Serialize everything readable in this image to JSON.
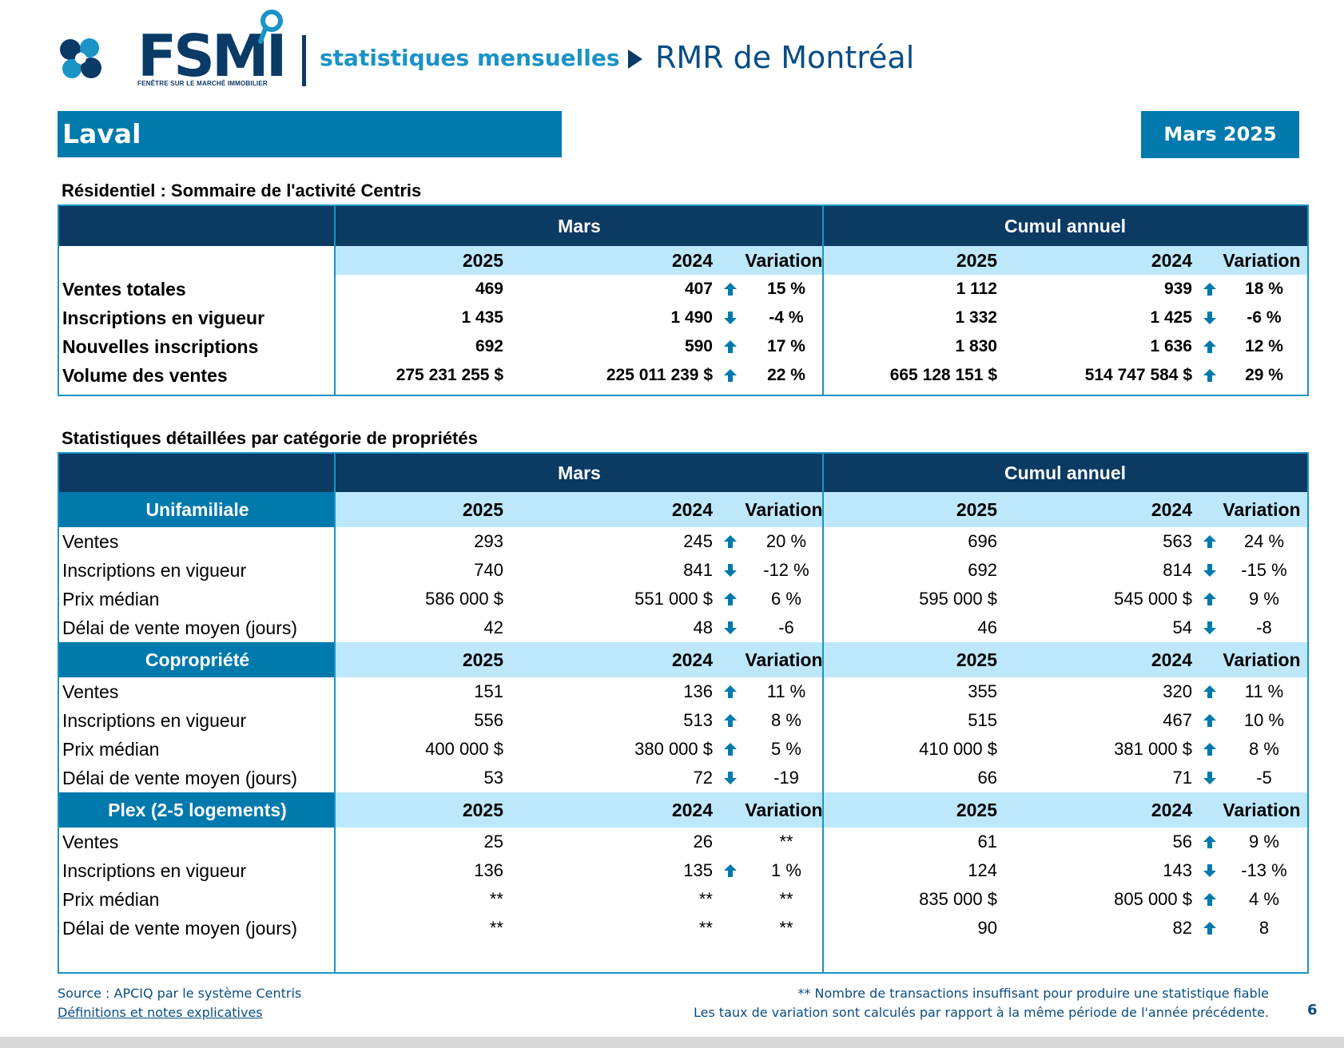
{
  "header": {
    "logo_text": "FSMI",
    "logo_subtext": "FENÊTRE SUR LE MARCHÉ IMMOBILIER",
    "subtitle": "statistiques mensuelles",
    "region": "RMR de Montréal"
  },
  "banner": {
    "city": "Laval",
    "period": "Mars 2025"
  },
  "colors": {
    "navy": "#0b3a63",
    "accent": "#0079ad",
    "light": "#bde8fb",
    "border": "#1a93c6"
  },
  "summary": {
    "title": "Résidentiel : Sommaire de l'activité Centris",
    "group_labels": [
      "Mars",
      "Cumul annuel"
    ],
    "col_labels": [
      "2025",
      "2024",
      "Variation",
      "2025",
      "2024",
      "Variation"
    ],
    "rows": [
      {
        "label": "Ventes totales",
        "m25": "469",
        "m24": "407",
        "m_dir": "up",
        "m_var": "15 %",
        "c25": "1 112",
        "c24": "939",
        "c_dir": "up",
        "c_var": "18 %"
      },
      {
        "label": "Inscriptions en vigueur",
        "m25": "1 435",
        "m24": "1 490",
        "m_dir": "down",
        "m_var": "-4 %",
        "c25": "1 332",
        "c24": "1 425",
        "c_dir": "down",
        "c_var": "-6 %"
      },
      {
        "label": "Nouvelles inscriptions",
        "m25": "692",
        "m24": "590",
        "m_dir": "up",
        "m_var": "17 %",
        "c25": "1 830",
        "c24": "1 636",
        "c_dir": "up",
        "c_var": "12 %"
      },
      {
        "label": "Volume des ventes",
        "m25": "275 231 255  $",
        "m24": "225 011 239  $",
        "m_dir": "up",
        "m_var": "22 %",
        "c25": "665 128 151  $",
        "c24": "514 747 584  $",
        "c_dir": "up",
        "c_var": "29 %"
      }
    ]
  },
  "detail": {
    "title": "Statistiques détaillées par catégorie de propriétés",
    "group_labels": [
      "Mars",
      "Cumul annuel"
    ],
    "col_labels": [
      "2025",
      "2024",
      "Variation",
      "2025",
      "2024",
      "Variation"
    ],
    "categories": [
      {
        "name": "Unifamiliale",
        "rows": [
          {
            "label": "Ventes",
            "m25": "293",
            "m24": "245",
            "m_dir": "up",
            "m_var": "20 %",
            "c25": "696",
            "c24": "563",
            "c_dir": "up",
            "c_var": "24 %"
          },
          {
            "label": "Inscriptions en vigueur",
            "m25": "740",
            "m24": "841",
            "m_dir": "down",
            "m_var": "-12 %",
            "c25": "692",
            "c24": "814",
            "c_dir": "down",
            "c_var": "-15 %"
          },
          {
            "label": "Prix médian",
            "m25": "586 000 $",
            "m24": "551 000 $",
            "m_dir": "up",
            "m_var": "6 %",
            "c25": "595 000 $",
            "c24": "545 000 $",
            "c_dir": "up",
            "c_var": "9 %"
          },
          {
            "label": "Délai de vente moyen (jours)",
            "m25": "42",
            "m24": "48",
            "m_dir": "down",
            "m_var": "-6",
            "c25": "46",
            "c24": "54",
            "c_dir": "down",
            "c_var": "-8"
          }
        ]
      },
      {
        "name": "Copropriété",
        "rows": [
          {
            "label": "Ventes",
            "m25": "151",
            "m24": "136",
            "m_dir": "up",
            "m_var": "11 %",
            "c25": "355",
            "c24": "320",
            "c_dir": "up",
            "c_var": "11 %"
          },
          {
            "label": "Inscriptions en vigueur",
            "m25": "556",
            "m24": "513",
            "m_dir": "up",
            "m_var": "8 %",
            "c25": "515",
            "c24": "467",
            "c_dir": "up",
            "c_var": "10 %"
          },
          {
            "label": "Prix médian",
            "m25": "400 000 $",
            "m24": "380 000 $",
            "m_dir": "up",
            "m_var": "5 %",
            "c25": "410 000 $",
            "c24": "381 000 $",
            "c_dir": "up",
            "c_var": "8 %"
          },
          {
            "label": "Délai de vente moyen (jours)",
            "m25": "53",
            "m24": "72",
            "m_dir": "down",
            "m_var": "-19",
            "c25": "66",
            "c24": "71",
            "c_dir": "down",
            "c_var": "-5"
          }
        ]
      },
      {
        "name": "Plex (2-5 logements)",
        "rows": [
          {
            "label": "Ventes",
            "m25": "25",
            "m24": "26",
            "m_dir": "",
            "m_var": "**",
            "c25": "61",
            "c24": "56",
            "c_dir": "up",
            "c_var": "9 %"
          },
          {
            "label": "Inscriptions en vigueur",
            "m25": "136",
            "m24": "135",
            "m_dir": "up",
            "m_var": "1 %",
            "c25": "124",
            "c24": "143",
            "c_dir": "down",
            "c_var": "-13 %"
          },
          {
            "label": "Prix médian",
            "m25": "**",
            "m24": "**",
            "m_dir": "",
            "m_var": "**",
            "c25": "835 000 $",
            "c24": "805 000 $",
            "c_dir": "up",
            "c_var": "4 %"
          },
          {
            "label": "Délai de vente moyen (jours)",
            "m25": "**",
            "m24": "**",
            "m_dir": "",
            "m_var": "**",
            "c25": "90",
            "c24": "82",
            "c_dir": "up",
            "c_var": "8"
          }
        ]
      }
    ]
  },
  "footer": {
    "source": "Source : APCIQ par le système Centris",
    "definitions_link": "Définitions et notes explicatives",
    "note_insufficient": "** Nombre de transactions insuffisant pour produire une statistique fiable",
    "note_variation": "Les taux de variation sont calculés par rapport à la même période de l'année précédente.",
    "page_number": "6"
  }
}
